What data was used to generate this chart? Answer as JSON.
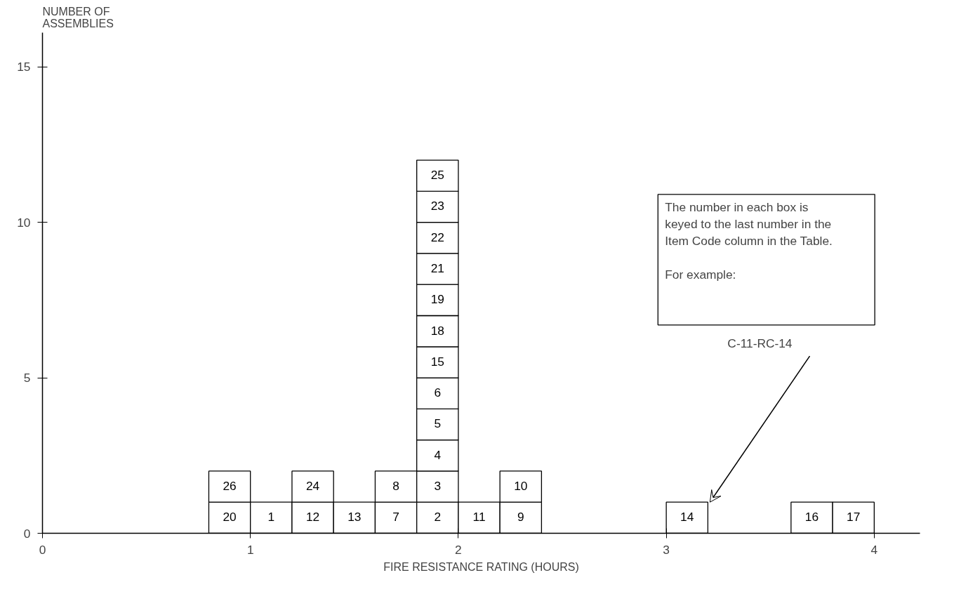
{
  "chart_data": {
    "type": "bar",
    "stacked": true,
    "xlabel": "FIRE RESISTANCE RATING (HOURS)",
    "ylabel": "NUMBER OF\nASSEMBLIES",
    "x": [
      0.9,
      1.1,
      1.3,
      1.5,
      1.7,
      1.9,
      2.1,
      2.3,
      3.1,
      3.7,
      3.9
    ],
    "xlim": [
      0,
      4.22
    ],
    "xticks": [
      0,
      1,
      2,
      3,
      4
    ],
    "ylim": [
      0,
      16.1
    ],
    "yticks": [
      0,
      5,
      10,
      15
    ],
    "series": [
      {
        "color": "#ffffff",
        "values": [
          1,
          1,
          1,
          1,
          1,
          1,
          1,
          1,
          1,
          1,
          1
        ]
      },
      {
        "color": "#ffffff",
        "values": [
          1,
          null,
          1,
          null,
          1,
          1,
          null,
          1,
          null,
          null,
          null
        ]
      },
      {
        "color": "#ffffff",
        "values": [
          null,
          null,
          null,
          null,
          null,
          1,
          null,
          null,
          null,
          null,
          null
        ]
      },
      {
        "color": "#ffffff",
        "values": [
          null,
          null,
          null,
          null,
          null,
          1,
          null,
          null,
          null,
          null,
          null
        ]
      },
      {
        "color": "#ffffff",
        "values": [
          null,
          null,
          null,
          null,
          null,
          1,
          null,
          null,
          null,
          null,
          null
        ]
      },
      {
        "color": "#ffffff",
        "values": [
          null,
          null,
          null,
          null,
          null,
          1,
          null,
          null,
          null,
          null,
          null
        ]
      },
      {
        "color": "#ffffff",
        "values": [
          null,
          null,
          null,
          null,
          null,
          1,
          null,
          null,
          null,
          null,
          null
        ]
      },
      {
        "color": "#ffffff",
        "values": [
          null,
          null,
          null,
          null,
          null,
          1,
          null,
          null,
          null,
          null,
          null
        ]
      },
      {
        "color": "#ffffff",
        "values": [
          null,
          null,
          null,
          null,
          null,
          1,
          null,
          null,
          null,
          null,
          null
        ]
      },
      {
        "color": "#ffffff",
        "values": [
          null,
          null,
          null,
          null,
          null,
          1,
          null,
          null,
          null,
          null,
          null
        ]
      },
      {
        "color": "#ffffff",
        "values": [
          null,
          null,
          null,
          null,
          null,
          1,
          null,
          null,
          null,
          null,
          null
        ]
      },
      {
        "color": "#ffffff",
        "values": [
          null,
          null,
          null,
          null,
          null,
          1,
          null,
          null,
          null,
          null,
          null
        ]
      }
    ],
    "annotations": [
      "The number in each box is\nkeyed to the last number in the\nItem Code column in the Table.\n\nFor example:",
      "C-11-RC-14",
      {
        "text": "20",
        "x": 0.9,
        "y": 1
      },
      {
        "text": "1",
        "x": 1.1,
        "y": 1
      },
      {
        "text": "12",
        "x": 1.3,
        "y": 1
      },
      {
        "text": "13",
        "x": 1.5,
        "y": 1
      },
      {
        "text": "7",
        "x": 1.7,
        "y": 1
      },
      {
        "text": "2",
        "x": 1.9,
        "y": 1
      },
      {
        "text": "11",
        "x": 2.1,
        "y": 1
      },
      {
        "text": "9",
        "x": 2.3,
        "y": 1
      },
      {
        "text": "14",
        "x": 3.1,
        "y": 1
      },
      {
        "text": "16",
        "x": 3.7,
        "y": 1
      },
      {
        "text": "17",
        "x": 3.9,
        "y": 1
      },
      {
        "text": "26",
        "x": 0.9,
        "y": 2
      },
      {
        "text": "24",
        "x": 1.3,
        "y": 2
      },
      {
        "text": "8",
        "x": 1.7,
        "y": 2
      },
      {
        "text": "3",
        "x": 1.9,
        "y": 2
      },
      {
        "text": "10",
        "x": 2.3,
        "y": 2
      },
      {
        "text": "4",
        "x": 1.9,
        "y": 3
      },
      {
        "text": "5",
        "x": 1.9,
        "y": 4
      },
      {
        "text": "6",
        "x": 1.9,
        "y": 5
      },
      {
        "text": "15",
        "x": 1.9,
        "y": 6
      },
      {
        "text": "18",
        "x": 1.9,
        "y": 7
      },
      {
        "text": "19",
        "x": 1.9,
        "y": 8
      },
      {
        "text": "21",
        "x": 1.9,
        "y": 9
      },
      {
        "text": "22",
        "x": 1.9,
        "y": 10
      },
      {
        "text": "23",
        "x": 1.9,
        "y": 11
      },
      {
        "text": "25",
        "x": 1.9,
        "y": 12
      }
    ]
  }
}
